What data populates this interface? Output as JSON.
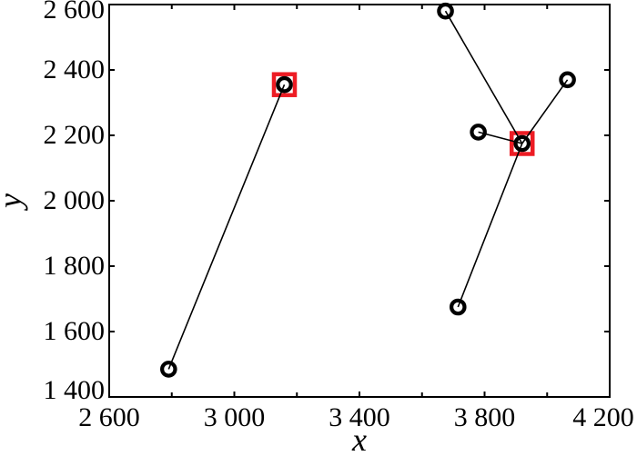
{
  "figure": {
    "background": "#ffffff"
  },
  "chart_data": {
    "type": "scatter",
    "title": "",
    "xlabel": "x",
    "ylabel": "y",
    "xlim": [
      2600,
      4200
    ],
    "ylim": [
      1400,
      2600
    ],
    "grid": false,
    "legend": false,
    "x_ticks": {
      "major": [
        2600,
        3000,
        3400,
        3800,
        4200
      ],
      "minor": [
        2800,
        3200,
        3600,
        4000
      ],
      "labels": [
        "2 600",
        "3 000",
        "3 400",
        "3 800",
        "4 200"
      ]
    },
    "y_ticks": {
      "major": [
        1400,
        1600,
        1800,
        2000,
        2200,
        2400,
        2600
      ],
      "labels": [
        "1 400",
        "1 600",
        "1 800",
        "2 000",
        "2 200",
        "2 400",
        "2 600"
      ]
    },
    "points": [
      {
        "id": "A",
        "x": 2790,
        "y": 1485,
        "marker": "open-circle",
        "highlight": false
      },
      {
        "id": "B",
        "x": 3160,
        "y": 2355,
        "marker": "open-circle",
        "highlight": true
      },
      {
        "id": "C",
        "x": 3675,
        "y": 2580,
        "marker": "open-circle",
        "highlight": false
      },
      {
        "id": "D",
        "x": 3920,
        "y": 2175,
        "marker": "open-circle",
        "highlight": true
      },
      {
        "id": "E",
        "x": 3780,
        "y": 2210,
        "marker": "open-circle",
        "highlight": false
      },
      {
        "id": "F",
        "x": 4065,
        "y": 2370,
        "marker": "open-circle",
        "highlight": false
      },
      {
        "id": "G",
        "x": 3715,
        "y": 1675,
        "marker": "open-circle",
        "highlight": false
      }
    ],
    "edges": [
      [
        "A",
        "B"
      ],
      [
        "C",
        "D"
      ],
      [
        "E",
        "D"
      ],
      [
        "F",
        "D"
      ],
      [
        "G",
        "D"
      ]
    ],
    "colors": {
      "axis": "#000000",
      "marker": "#000000",
      "edge_line": "#000000",
      "highlight_square": "#ed1c24",
      "background": "#ffffff"
    }
  }
}
